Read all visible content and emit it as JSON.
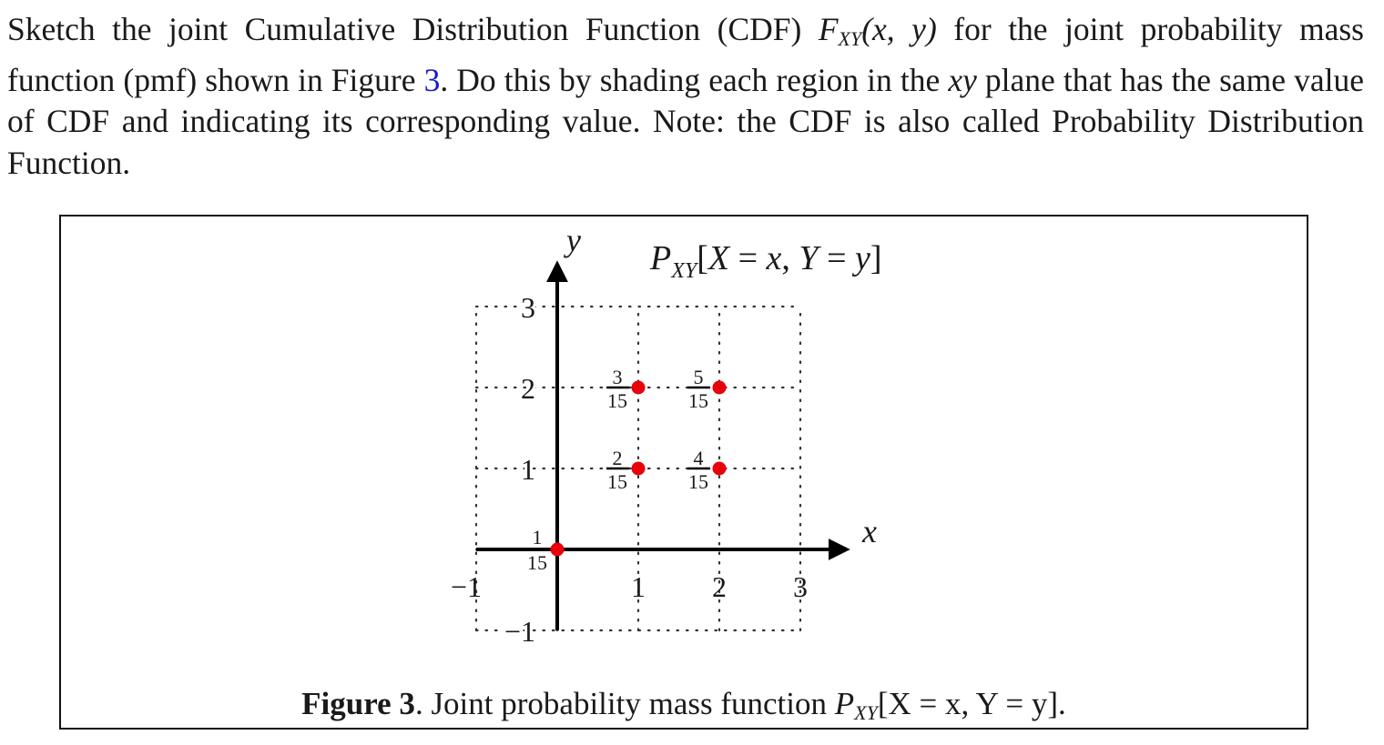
{
  "problem": {
    "text_1": "Sketch the joint Cumulative Distribution Function (CDF) ",
    "func": "F",
    "func_sub": "XY",
    "func_args": "(x, y)",
    "text_2": " for the joint probability mass function (pmf) shown in Figure ",
    "figure_ref": "3",
    "text_3": ". Do this by shading each region in the ",
    "plane": "xy",
    "text_4": " plane that has the same value of CDF and indicating its corresponding value. Note: the CDF is also called Probability Distribution Function."
  },
  "figure": {
    "plot_title": "P_XY[X = x, Y = y]",
    "caption_label": "Figure 3",
    "caption_text": ". Joint probability mass function ",
    "caption_func": "P",
    "caption_sub": "XY",
    "caption_args": "[X = x, Y = y]."
  },
  "chart_data": {
    "type": "scatter",
    "title": "P_XY[X = x, Y = y]",
    "xlabel": "x",
    "ylabel": "y",
    "xlim": [
      -1,
      3
    ],
    "ylim": [
      -1,
      3
    ],
    "x_ticks": [
      "−1",
      "1",
      "2",
      "3"
    ],
    "y_ticks": [
      "−1",
      "1",
      "2",
      "3"
    ],
    "grid": "dotted",
    "point_color": "#e8000b",
    "points": [
      {
        "x": 0,
        "y": 0,
        "num": "1",
        "den": "15",
        "value": 0.0667
      },
      {
        "x": 1,
        "y": 1,
        "num": "2",
        "den": "15",
        "value": 0.1333
      },
      {
        "x": 1,
        "y": 2,
        "num": "3",
        "den": "15",
        "value": 0.2
      },
      {
        "x": 2,
        "y": 1,
        "num": "4",
        "den": "15",
        "value": 0.2667
      },
      {
        "x": 2,
        "y": 2,
        "num": "5",
        "den": "15",
        "value": 0.3333
      }
    ]
  }
}
